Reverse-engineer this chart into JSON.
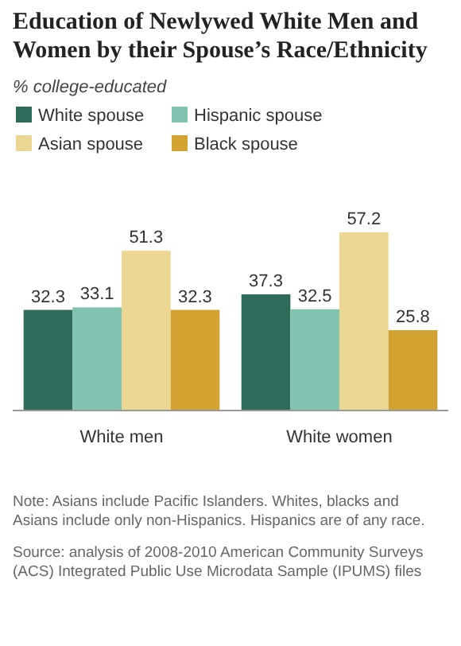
{
  "chart_data": {
    "type": "bar",
    "title": "Education of Newlywed White Men and Women by their Spouse’s Race/Ethnicity",
    "subtitle": "% college-educated",
    "categories": [
      "White men",
      "White women"
    ],
    "series": [
      {
        "name": "White spouse",
        "color": "#2e6b5b",
        "values": [
          32.3,
          37.3
        ]
      },
      {
        "name": "Hispanic spouse",
        "color": "#7fc3b0",
        "values": [
          33.1,
          32.5
        ]
      },
      {
        "name": "Asian spouse",
        "color": "#ecd792",
        "values": [
          51.3,
          57.2
        ]
      },
      {
        "name": "Black spouse",
        "color": "#d3a331",
        "values": [
          32.3,
          25.8
        ]
      }
    ],
    "data_labels": true,
    "legend": "top",
    "annotations": [
      "Note: Asians include Pacific Islanders. Whites, blacks and Asians include only non-Hispanics. Hispanics are of any race.",
      "Source: analysis of 2008-2010 American Community Surveys (ACS) Integrated Public Use Microdata Sample (IPUMS) files"
    ]
  }
}
